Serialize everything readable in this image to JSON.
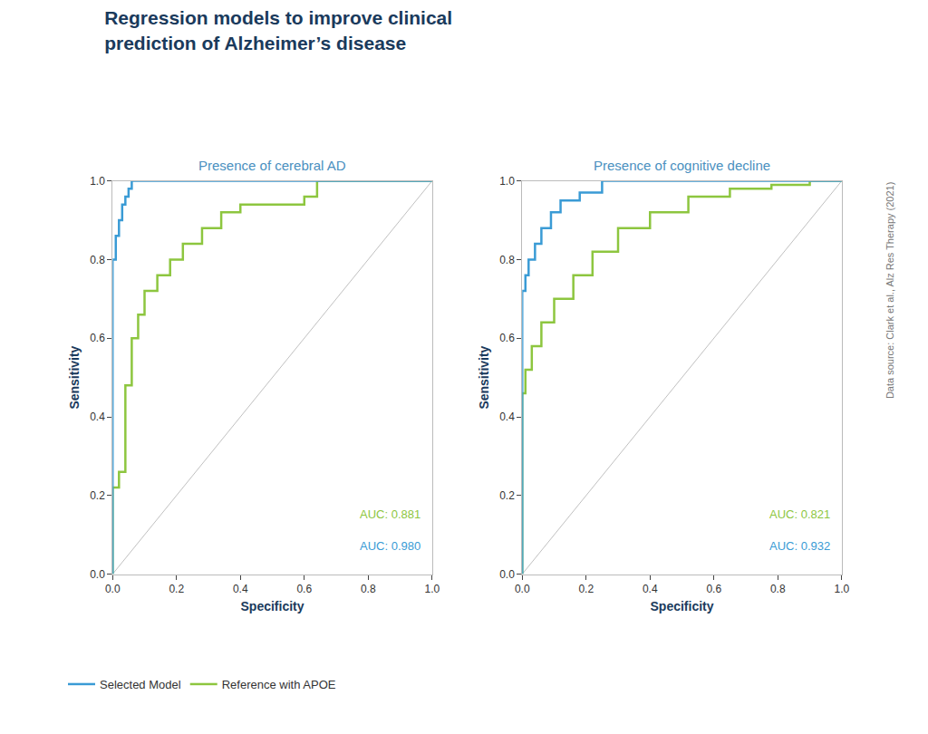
{
  "title": "Regression models to improve clinical\nprediction of Alzheimer’s disease",
  "title_color": "#1a3a5c",
  "annotations": [
    {
      "text": "Data source: Clark et al., Alz Res Therapy (2021)",
      "color": "#777777"
    }
  ],
  "chart_data": [
    {
      "type": "line",
      "title": "Presence of cerebral AD",
      "xlabel": "Specificity",
      "ylabel": "Sensitivity",
      "xlim": [
        0,
        1
      ],
      "ylim": [
        0,
        1
      ],
      "xticks": [
        {
          "value": 0,
          "label": "0.0"
        },
        0.2,
        0.4,
        0.6,
        0.8,
        {
          "value": 1,
          "label": "1.0"
        }
      ],
      "yticks": [
        {
          "value": 0,
          "label": "0.0"
        },
        0.2,
        0.4,
        0.6,
        0.8,
        {
          "value": 1,
          "label": "1.0"
        }
      ],
      "grid": false,
      "legend": "lower left",
      "series": [
        {
          "color": "#c0c0c0",
          "x": [
            0,
            1
          ],
          "values": [
            0,
            1
          ]
        },
        {
          "name": "Reference with APOE",
          "color": "#8dc63f",
          "line_style": "step",
          "x": [
            0.0,
            0.0,
            0.02,
            0.02,
            0.04,
            0.04,
            0.06,
            0.06,
            0.08,
            0.08,
            0.1,
            0.1,
            0.14,
            0.14,
            0.18,
            0.18,
            0.22,
            0.22,
            0.28,
            0.28,
            0.34,
            0.34,
            0.4,
            0.4,
            0.6,
            0.6,
            0.64,
            0.64,
            1.0
          ],
          "values": [
            0.0,
            0.22,
            0.22,
            0.26,
            0.26,
            0.48,
            0.48,
            0.6,
            0.6,
            0.66,
            0.66,
            0.72,
            0.72,
            0.76,
            0.76,
            0.8,
            0.8,
            0.84,
            0.84,
            0.88,
            0.88,
            0.92,
            0.92,
            0.94,
            0.94,
            0.96,
            0.96,
            1.0,
            1.0
          ]
        },
        {
          "name": "Selected Model",
          "color": "#3a9bd5",
          "line_style": "step",
          "x": [
            0.0,
            0.0,
            0.01,
            0.01,
            0.02,
            0.02,
            0.03,
            0.03,
            0.04,
            0.04,
            0.05,
            0.05,
            0.06,
            0.06,
            0.08,
            0.08,
            0.1,
            0.1,
            0.62,
            0.62,
            1.0
          ],
          "values": [
            0.0,
            0.8,
            0.8,
            0.86,
            0.86,
            0.9,
            0.9,
            0.94,
            0.94,
            0.96,
            0.96,
            0.98,
            0.98,
            1.0,
            1.0,
            1.0,
            1.0,
            1.0,
            1.0,
            1.0,
            1.0
          ]
        }
      ],
      "annotations": [
        {
          "text": "AUC: 0.881",
          "color": "#8dc63f"
        },
        {
          "text": "AUC: 0.980",
          "color": "#3a9bd5"
        }
      ]
    },
    {
      "type": "line",
      "title": "Presence of cognitive decline",
      "xlabel": "Specificity",
      "ylabel": "Sensitivity",
      "xlim": [
        0,
        1
      ],
      "ylim": [
        0,
        1
      ],
      "xticks": [
        {
          "value": 0,
          "label": "0.0"
        },
        0.2,
        0.4,
        0.6,
        0.8,
        {
          "value": 1,
          "label": "1.0"
        }
      ],
      "yticks": [
        {
          "value": 0,
          "label": "0.0"
        },
        0.2,
        0.4,
        0.6,
        0.8,
        {
          "value": 1,
          "label": "1.0"
        }
      ],
      "grid": false,
      "series": [
        {
          "color": "#c0c0c0",
          "x": [
            0,
            1
          ],
          "values": [
            0,
            1
          ]
        },
        {
          "name": "Reference with APOE",
          "color": "#8dc63f",
          "line_style": "step",
          "x": [
            0.0,
            0.0,
            0.01,
            0.01,
            0.03,
            0.03,
            0.06,
            0.06,
            0.1,
            0.1,
            0.16,
            0.16,
            0.22,
            0.22,
            0.3,
            0.3,
            0.4,
            0.4,
            0.52,
            0.52,
            0.65,
            0.65,
            0.78,
            0.78,
            0.9,
            0.9,
            1.0
          ],
          "values": [
            0.0,
            0.46,
            0.46,
            0.52,
            0.52,
            0.58,
            0.58,
            0.64,
            0.64,
            0.7,
            0.7,
            0.76,
            0.76,
            0.82,
            0.82,
            0.88,
            0.88,
            0.92,
            0.92,
            0.96,
            0.96,
            0.98,
            0.98,
            0.99,
            0.99,
            1.0,
            1.0
          ]
        },
        {
          "name": "Selected Model",
          "color": "#3a9bd5",
          "line_style": "step",
          "x": [
            0.0,
            0.0,
            0.01,
            0.01,
            0.02,
            0.02,
            0.04,
            0.04,
            0.06,
            0.06,
            0.09,
            0.09,
            0.12,
            0.12,
            0.18,
            0.18,
            0.25,
            0.25,
            0.4,
            0.4,
            0.55,
            0.55,
            1.0
          ],
          "values": [
            0.0,
            0.72,
            0.72,
            0.76,
            0.76,
            0.8,
            0.8,
            0.84,
            0.84,
            0.88,
            0.88,
            0.92,
            0.92,
            0.95,
            0.95,
            0.97,
            0.97,
            1.0,
            1.0,
            1.0,
            1.0,
            1.0,
            1.0
          ]
        }
      ],
      "annotations": [
        {
          "text": "AUC: 0.821",
          "color": "#8dc63f"
        },
        {
          "text": "AUC: 0.932",
          "color": "#3a9bd5"
        }
      ]
    }
  ]
}
